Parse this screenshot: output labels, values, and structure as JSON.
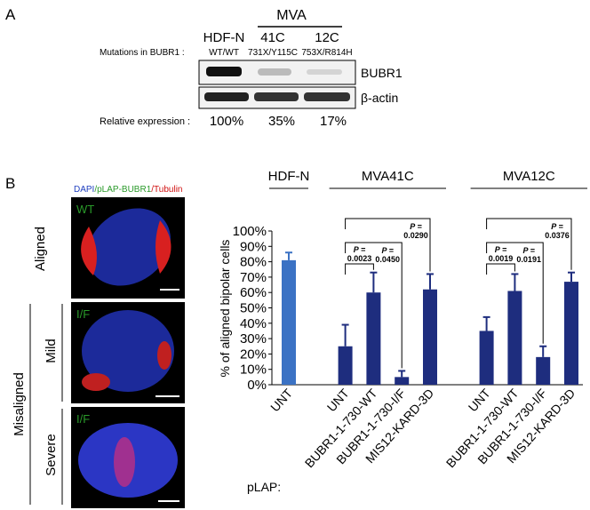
{
  "panel_a": {
    "label": "A",
    "group": "MVA",
    "lanes": [
      "HDF-N",
      "41C",
      "12C"
    ],
    "mutations_label": "Mutations in BUBR1 :",
    "mutations": [
      "WT/WT",
      "731X/Y115C",
      "753X/R814H"
    ],
    "bands": [
      "BUBR1",
      "β-actin"
    ],
    "expression_label": "Relative expression :",
    "expression": [
      "100%",
      "35%",
      "17%"
    ]
  },
  "panel_b": {
    "label": "B",
    "stain": [
      "DAPI",
      "/pLAP-BUBR1",
      "/Tubulin"
    ],
    "rows": [
      "Aligned",
      "Misaligned",
      "Mild",
      "Severe"
    ],
    "image_labels": [
      "WT",
      "I/F",
      "I/F"
    ]
  },
  "chart_data": {
    "type": "bar",
    "groups": [
      "HDF-N",
      "MVA41C",
      "MVA12C"
    ],
    "ylabel": "% of aligned bipolar cells",
    "xlabel": "pLAP:",
    "categories": [
      "UNT",
      null,
      "UNT",
      "BUBR1-1-730-WT",
      "BUBR1-1-730-I/F",
      "MIS12-KARD-3D",
      null,
      "UNT",
      "BUBR1-1-730-WT",
      "BUBR1-1-730-I/F",
      "MIS12-KARD-3D"
    ],
    "values": [
      81,
      null,
      25,
      60,
      5,
      62,
      null,
      35,
      61,
      18,
      67
    ],
    "errors": [
      5,
      null,
      14,
      13,
      4,
      10,
      null,
      9,
      11,
      7,
      6
    ],
    "colors": [
      "#3b72c4",
      null,
      "#1e2d7e",
      "#1e2d7e",
      "#1e2d7e",
      "#1e2d7e",
      null,
      "#1e2d7e",
      "#1e2d7e",
      "#1e2d7e",
      "#1e2d7e"
    ],
    "ylim": [
      0,
      100
    ],
    "yticks": [
      {
        "value": 0,
        "label": "0%"
      },
      {
        "value": 10,
        "label": "10%"
      },
      {
        "value": 20,
        "label": "20%"
      },
      {
        "value": 30,
        "label": "30%"
      },
      {
        "value": 40,
        "label": "40%"
      },
      {
        "value": 50,
        "label": "50%"
      },
      {
        "value": 60,
        "label": "60%"
      },
      {
        "value": 70,
        "label": "70%"
      },
      {
        "value": 80,
        "label": "80%"
      },
      {
        "value": 90,
        "label": "90%"
      },
      {
        "value": 100,
        "label": "100%"
      }
    ],
    "annotations": [
      {
        "p": "P =",
        "value": "0.0023"
      },
      {
        "p": "P =",
        "value": "0.0450"
      },
      {
        "p": "P =",
        "value": "0.0290"
      },
      {
        "p": "P =",
        "value": "0.0019"
      },
      {
        "p": "P =",
        "value": "0.0191"
      },
      {
        "p": "P =",
        "value": "0.0376"
      }
    ]
  }
}
